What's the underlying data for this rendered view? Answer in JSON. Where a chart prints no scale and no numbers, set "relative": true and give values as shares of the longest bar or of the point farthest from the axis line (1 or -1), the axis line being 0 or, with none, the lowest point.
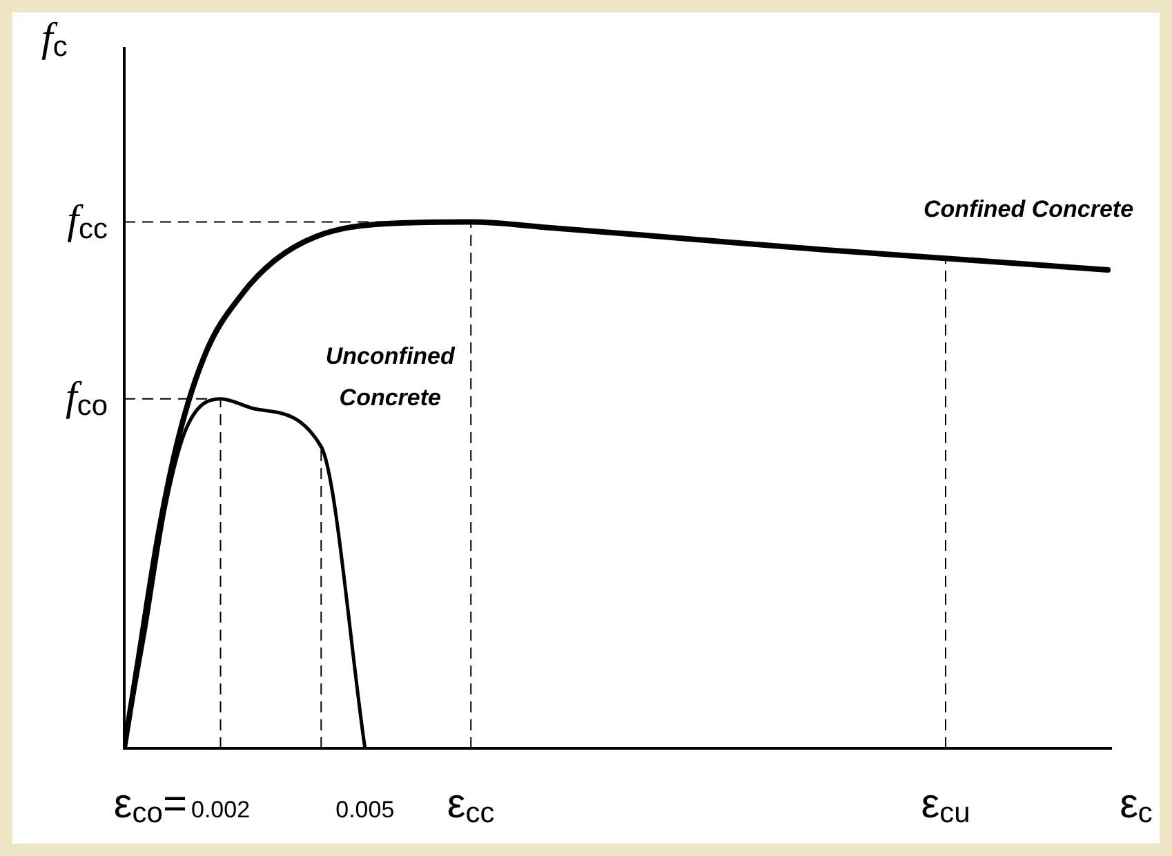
{
  "chart_data": {
    "type": "line",
    "relative": true,
    "xlabel": "ε$_{c}$",
    "ylabel": "f$_{c}$",
    "xlim": [
      0,
      0.0205
    ],
    "xticks": [
      0.002,
      0.005
    ],
    "annotations": [
      {
        "text": "ε$_{co}$=",
        "x": 0.002,
        "y": 0
      },
      {
        "text": "ε$_{cc}$",
        "x": 0.0072,
        "y": 0
      },
      {
        "text": "ε$_{cu}$",
        "x": 0.01706,
        "y": 0
      }
    ],
    "series": [
      {
        "name": "Confined Concrete",
        "color": "#000000",
        "x": [
          0,
          0.00029,
          0.00071,
          0.00114,
          0.00171,
          0.00243,
          0.00314,
          0.004,
          0.00514,
          0.0072,
          0.00886,
          0.01171,
          0.01457,
          0.01706,
          0.02043
        ],
        "values": [
          0,
          0.168,
          0.408,
          0.595,
          0.755,
          0.861,
          0.928,
          0.973,
          0.995,
          1,
          0.989,
          0.968,
          0.947,
          0.931,
          0.909
        ]
      },
      {
        "name": "Unconfined Concrete",
        "color": "#000000",
        "x": [
          0,
          0.00043,
          0.00086,
          0.00129,
          0.002,
          0.00271,
          0.00409,
          0.005
        ],
        "values": [
          0,
          0.221,
          0.461,
          0.608,
          0.664,
          0.645,
          0.573,
          0
        ]
      }
    ],
    "ref_lines": [
      {
        "axis": "y",
        "value": 1,
        "label": "f$_{cc}$",
        "line_style": "dashed"
      },
      {
        "axis": "y",
        "value": 0.664,
        "label": "f$_{co}$",
        "line_style": "dashed"
      },
      {
        "axis": "x",
        "value": 0.002,
        "line_style": "dashed"
      },
      {
        "axis": "x",
        "value": 0.00409,
        "line_style": "dashed"
      },
      {
        "axis": "x",
        "value": 0.0072,
        "line_style": "dashed"
      },
      {
        "axis": "x",
        "value": 0.01706,
        "line_style": "dashed"
      }
    ],
    "grid": false,
    "legend": false,
    "marker": "none",
    "line_style": "solid"
  }
}
